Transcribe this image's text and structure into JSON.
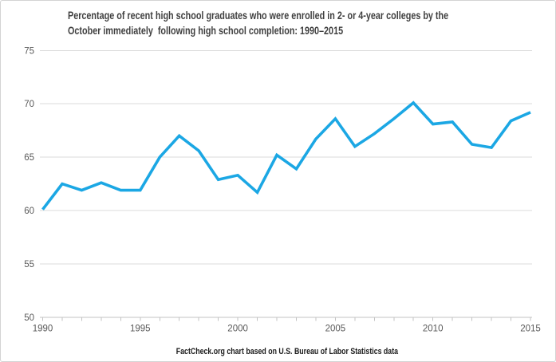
{
  "header": {
    "title_line1": "Percentage of recent high school graduates who were enrolled in 2- or 4-year colleges by the",
    "title_line2": "October immediately  following high school completion: 1990–2015"
  },
  "footer": {
    "caption": "FactCheck.org chart based on U.S. Bureau of Labor Statistics data"
  },
  "chart_data": {
    "type": "line",
    "title": "Percentage of recent high school graduates who were enrolled in 2- or 4-year colleges by the October immediately following high school completion: 1990–2015",
    "x": [
      1990,
      1991,
      1992,
      1993,
      1994,
      1995,
      1996,
      1997,
      1998,
      1999,
      2000,
      2001,
      2002,
      2003,
      2004,
      2005,
      2006,
      2007,
      2008,
      2009,
      2010,
      2011,
      2012,
      2013,
      2014,
      2015
    ],
    "values": [
      60.1,
      62.5,
      61.9,
      62.6,
      61.9,
      61.9,
      65.0,
      67.0,
      65.6,
      62.9,
      63.3,
      61.7,
      65.2,
      63.9,
      66.7,
      68.6,
      66.0,
      67.2,
      68.6,
      70.1,
      68.1,
      68.3,
      66.2,
      65.9,
      68.4,
      69.2
    ],
    "xlabel": "",
    "ylabel": "",
    "ylim": [
      50,
      75
    ],
    "yticks": [
      50,
      55,
      60,
      65,
      70,
      75
    ],
    "xticks": [
      1990,
      1995,
      2000,
      2005,
      2010,
      2015
    ],
    "grid": "horizontal",
    "legend": "none",
    "source": "FactCheck.org chart based on U.S. Bureau of Labor Statistics data",
    "colors": {
      "line": "#1BA7E4",
      "gridline": "#DBDBDB",
      "axis_line": "#C3C3C3",
      "tick": "#C3C3C3",
      "axis_label": "#595959",
      "title": "#3F3F3F",
      "caption": "#1A1A1A",
      "background": "#FFFFFF",
      "border": "#D3D3D3"
    }
  }
}
